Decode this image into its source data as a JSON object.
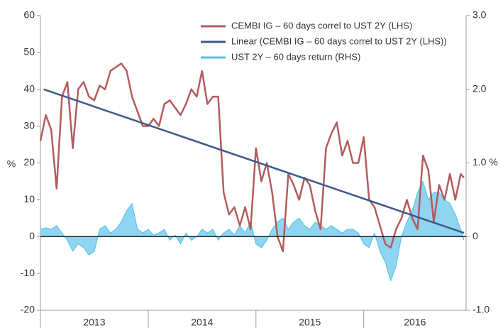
{
  "chart_data": {
    "type": "line",
    "ylabel": "%",
    "xlim": [
      2013,
      2016.95
    ],
    "xticks": [
      {
        "value": 2013,
        "label": "2013"
      },
      {
        "value": 2014,
        "label": "2014"
      },
      {
        "value": 2015,
        "label": "2015"
      },
      {
        "value": 2016,
        "label": "2016"
      }
    ],
    "ylim": [
      -20,
      60
    ],
    "yticks": [
      -20,
      -10,
      0,
      10,
      20,
      30,
      40,
      50,
      60
    ],
    "y2lim": [
      -1,
      3
    ],
    "y2ticks": [
      {
        "value": -1,
        "label": "-1.0"
      },
      0,
      {
        "value": 1,
        "label": "1.0 %"
      },
      {
        "value": 2,
        "label": "2.0"
      },
      {
        "value": 3,
        "label": "3.0"
      }
    ],
    "legend": "top-right",
    "series": [
      {
        "name": "CEMBI IG – 60 days correl to UST 2Y (LHS)",
        "color": "#b25c5e",
        "x": [
          2013,
          2013.05,
          2013.1,
          2013.15,
          2013.2,
          2013.25,
          2013.3,
          2013.35,
          2013.4,
          2013.45,
          2013.5,
          2013.55,
          2013.6,
          2013.65,
          2013.7,
          2013.75,
          2013.8,
          2013.85,
          2013.9,
          2013.95,
          2014,
          2014.05,
          2014.1,
          2014.15,
          2014.2,
          2014.25,
          2014.3,
          2014.35,
          2014.4,
          2014.45,
          2014.5,
          2014.55,
          2014.6,
          2014.65,
          2014.7,
          2014.75,
          2014.8,
          2014.85,
          2014.9,
          2014.95,
          2015,
          2015.05,
          2015.1,
          2015.15,
          2015.2,
          2015.25,
          2015.3,
          2015.35,
          2015.4,
          2015.45,
          2015.5,
          2015.55,
          2015.6,
          2015.65,
          2015.7,
          2015.75,
          2015.8,
          2015.85,
          2015.9,
          2015.95,
          2016,
          2016.05,
          2016.1,
          2016.15,
          2016.2,
          2016.25,
          2016.3,
          2016.35,
          2016.4,
          2016.45,
          2016.5,
          2016.55,
          2016.6,
          2016.65,
          2016.7,
          2016.75,
          2016.8,
          2016.85,
          2016.9,
          2016.93
        ],
        "values": [
          26,
          33,
          29,
          13,
          38,
          42,
          24,
          40,
          42,
          38,
          37,
          41,
          40,
          45,
          46,
          47,
          45,
          38,
          34,
          30,
          30,
          32,
          30,
          36,
          37,
          35,
          33,
          36,
          40,
          38,
          45,
          36,
          38,
          38,
          12,
          6,
          8,
          3,
          8,
          2,
          24,
          15,
          20,
          12,
          0,
          -4,
          17,
          14,
          10,
          16,
          14,
          7,
          2,
          24,
          28,
          31,
          22,
          26,
          20,
          20,
          27,
          10,
          8,
          3,
          -2,
          -3,
          2,
          5,
          10,
          5,
          2,
          22,
          18,
          4,
          14,
          10,
          17,
          10,
          17,
          16
        ]
      },
      {
        "name": "Linear (CEMBI IG – 60 days correl to UST 2Y (LHS))",
        "color": "#3c5a8a",
        "x": [
          2013.03,
          2016.93
        ],
        "values": [
          40,
          1
        ]
      },
      {
        "name": "UST 2Y – 60 days return (RHS)",
        "color": "#4fc3ec",
        "fill": "#8fd4f0",
        "axis": "y2",
        "area": true,
        "x": [
          2013,
          2013.05,
          2013.1,
          2013.15,
          2013.2,
          2013.25,
          2013.3,
          2013.35,
          2013.4,
          2013.45,
          2013.5,
          2013.55,
          2013.6,
          2013.65,
          2013.7,
          2013.75,
          2013.8,
          2013.85,
          2013.9,
          2013.95,
          2014,
          2014.05,
          2014.1,
          2014.15,
          2014.2,
          2014.25,
          2014.3,
          2014.35,
          2014.4,
          2014.45,
          2014.5,
          2014.55,
          2014.6,
          2014.65,
          2014.7,
          2014.75,
          2014.8,
          2014.85,
          2014.9,
          2014.95,
          2015,
          2015.05,
          2015.1,
          2015.15,
          2015.2,
          2015.25,
          2015.3,
          2015.35,
          2015.4,
          2015.45,
          2015.5,
          2015.55,
          2015.6,
          2015.65,
          2015.7,
          2015.75,
          2015.8,
          2015.85,
          2015.9,
          2015.95,
          2016,
          2016.05,
          2016.1,
          2016.15,
          2016.2,
          2016.25,
          2016.3,
          2016.35,
          2016.4,
          2016.45,
          2016.5,
          2016.55,
          2016.6,
          2016.65,
          2016.7,
          2016.75,
          2016.8,
          2016.85,
          2016.9,
          2016.93
        ],
        "values": [
          0.1,
          0.12,
          0.1,
          0.15,
          0.05,
          -0.05,
          -0.2,
          -0.1,
          -0.15,
          -0.25,
          -0.2,
          0.1,
          0.15,
          0.05,
          0.1,
          0.2,
          0.35,
          0.45,
          0.1,
          0.05,
          0.1,
          0.02,
          0.05,
          0.1,
          -0.05,
          0.02,
          -0.1,
          0.05,
          -0.05,
          0,
          0.1,
          0.05,
          0.1,
          -0.05,
          0.05,
          0.1,
          0.02,
          0.15,
          0.05,
          0.2,
          -0.1,
          -0.15,
          -0.05,
          0.1,
          0.2,
          0.25,
          0.1,
          0.2,
          0.25,
          0.15,
          0.1,
          0.2,
          0.15,
          0.1,
          0.15,
          0.1,
          0.05,
          0.1,
          0.1,
          0.05,
          -0.1,
          -0.15,
          0.05,
          -0.2,
          -0.35,
          -0.6,
          -0.4,
          0,
          0.2,
          0.35,
          0.6,
          0.75,
          0.5,
          0.6,
          0.6,
          0.5,
          0.45,
          0.3,
          0.1,
          -0.05
        ]
      }
    ]
  }
}
